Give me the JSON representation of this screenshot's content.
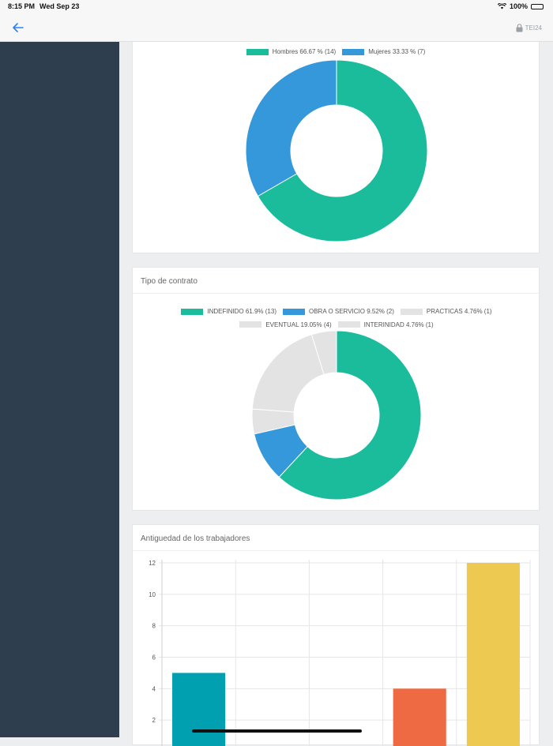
{
  "status_bar": {
    "time": "8:15 PM",
    "date": "Wed Sep 23",
    "battery": "100%"
  },
  "topbar": {
    "company": "TEI24"
  },
  "gender_chart": {
    "chart_data": {
      "type": "pie",
      "legend_position": "top",
      "slices": [
        {
          "label": "Hombres 66.67 % (14)",
          "value": 14,
          "color": "#1abc9c"
        },
        {
          "label": "Mujeres 33.33 % (7)",
          "value": 7,
          "color": "#3498db"
        }
      ]
    }
  },
  "contract_chart": {
    "title": "Tipo de contrato",
    "chart_data": {
      "type": "pie",
      "legend_position": "top",
      "slices": [
        {
          "label": "INDEFINIDO 61.9% (13)",
          "value": 13,
          "color": "#1abc9c"
        },
        {
          "label": "OBRA O SERVICIO 9.52% (2)",
          "value": 2,
          "color": "#3498db"
        },
        {
          "label": "PRACTICAS 4.76% (1)",
          "value": 1,
          "color": "#e3e3e3"
        },
        {
          "label": "EVENTUAL 19.05% (4)",
          "value": 4,
          "color": "#e3e3e3"
        },
        {
          "label": "INTERINIDAD 4.76% (1)",
          "value": 1,
          "color": "#e3e3e3"
        }
      ]
    }
  },
  "seniority_chart": {
    "title": "Antiguedad de los trabajadores",
    "chart_data": {
      "type": "bar",
      "grid": true,
      "ylim": [
        0,
        12
      ],
      "yticks": [
        2,
        4,
        6,
        8,
        10,
        12
      ],
      "categories": [
        "",
        "",
        "",
        "",
        ""
      ],
      "values": [
        5,
        0,
        0,
        4,
        12
      ],
      "colors": [
        "#00a0b0",
        "#1abc9c",
        "#3498db",
        "#ee6a42",
        "#edc951"
      ]
    }
  }
}
